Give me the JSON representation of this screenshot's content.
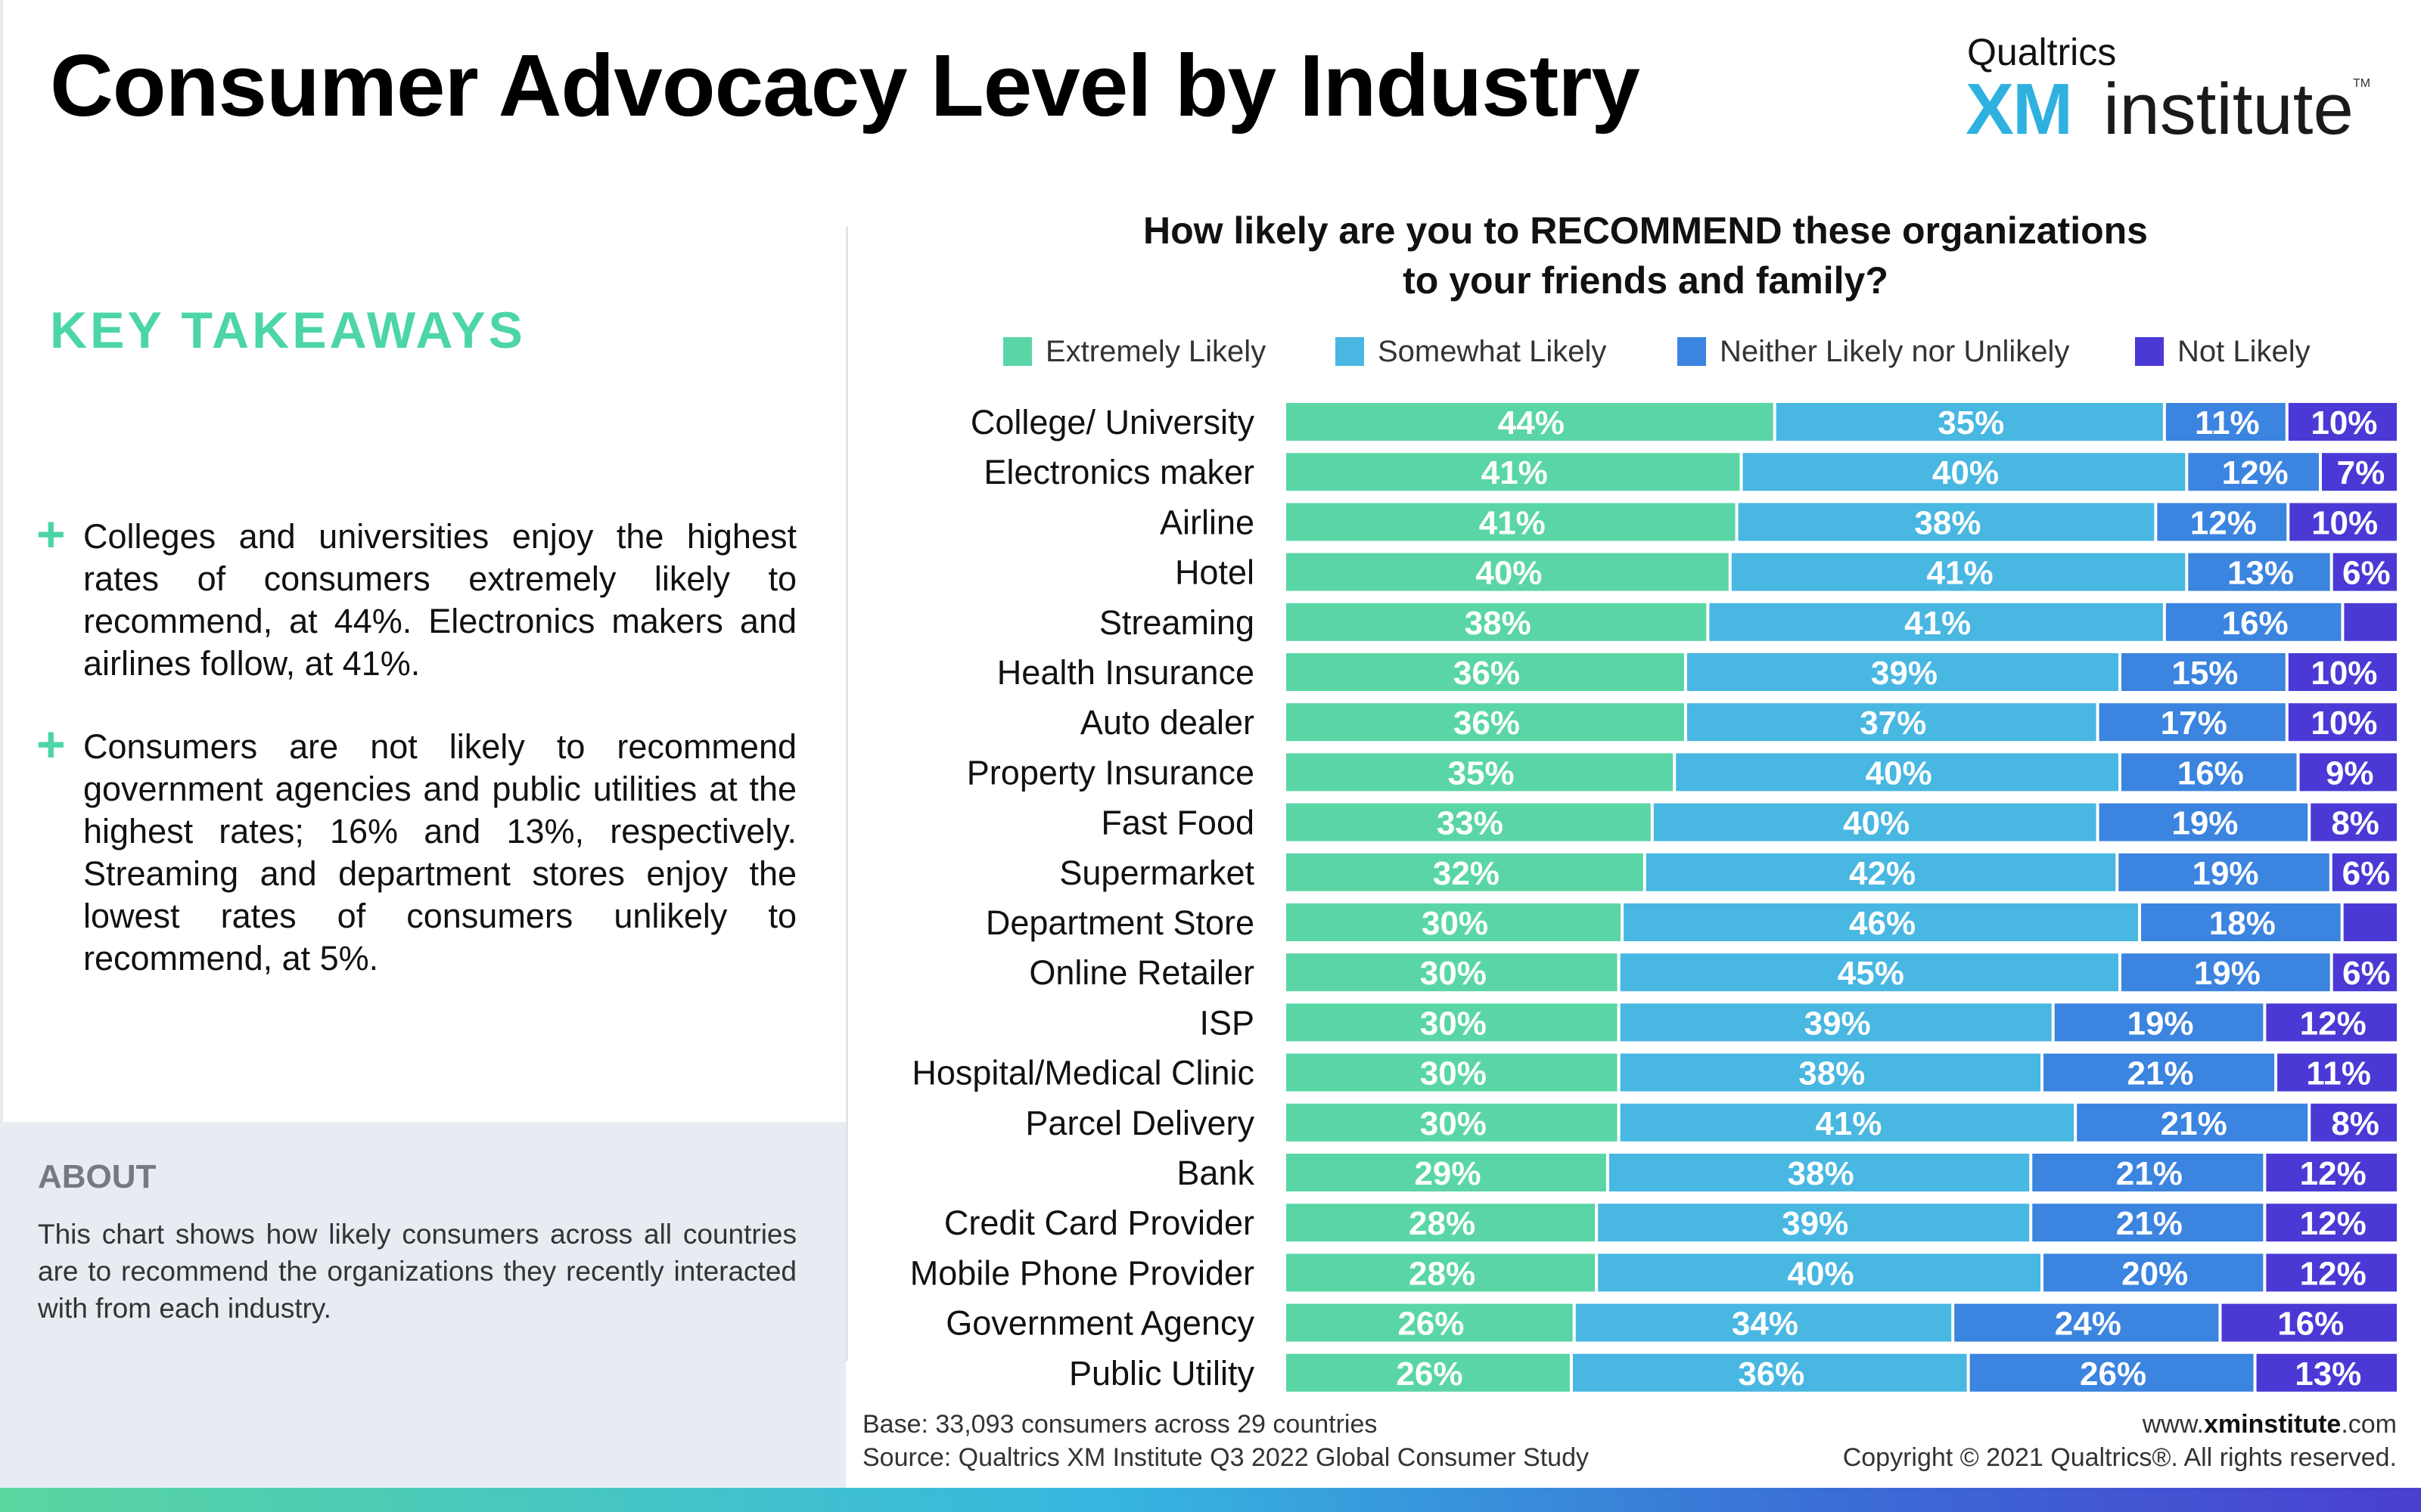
{
  "header": {
    "title": "Consumer Advocacy Level by Industry",
    "logo_brand": "Qualtrics",
    "logo_xm": "XM",
    "logo_institute": "institute",
    "logo_tm": "TM"
  },
  "takeaways": {
    "heading": "KEY TAKEAWAYS",
    "bullet_symbol": "+",
    "items": [
      "Colleges and universities enjoy the highest rates of consumers extremely likely to recommend, at 44%. Electronics makers and airlines follow, at 41%.",
      "Consumers are not likely to recommend government agencies and public utilities at the highest rates; 16% and 13%, respectively. Streaming and department stores enjoy the lowest rates of consumers unlikely to recommend, at 5%."
    ]
  },
  "about": {
    "heading": "ABOUT",
    "text": "This chart shows how likely consumers across all countries are to recommend the organizations they recently interacted with from each industry."
  },
  "footer": {
    "base": "Base: 33,093 consumers across 29 countries",
    "source": "Source: Qualtrics XM Institute Q3 2022 Global Consumer Study",
    "site_prefix": "www.",
    "site_bold": "xminstitute",
    "site_suffix": ".com",
    "copyright": "Copyright © 2021 Qualtrics®. All rights reserved."
  },
  "chart_data": {
    "type": "bar",
    "orientation": "horizontal",
    "stacked": true,
    "title": "How likely are you to RECOMMEND these organizations to your friends and family?",
    "title_lines": [
      "How likely are you to RECOMMEND these organizations",
      "to your friends and family?"
    ],
    "legend_position": "top",
    "grid": false,
    "xlim": [
      0,
      100
    ],
    "categories": [
      "College/ University",
      "Electronics maker",
      "Airline",
      "Hotel",
      "Streaming",
      "Health Insurance",
      "Auto dealer",
      "Property Insurance",
      "Fast Food",
      "Supermarket",
      "Department Store",
      "Online Retailer",
      "ISP",
      "Hospital/Medical Clinic",
      "Parcel Delivery",
      "Bank",
      "Credit Card Provider",
      "Mobile Phone Provider",
      "Government Agency",
      "Public Utility"
    ],
    "series": [
      {
        "name": "Extremely Likely",
        "color": "#5ad6a6",
        "values": [
          44,
          41,
          41,
          40,
          38,
          36,
          36,
          35,
          33,
          32,
          30,
          30,
          30,
          30,
          30,
          29,
          28,
          28,
          26,
          26
        ]
      },
      {
        "name": "Somewhat Likely",
        "color": "#48b7e2",
        "values": [
          35,
          40,
          38,
          41,
          41,
          39,
          37,
          40,
          40,
          42,
          46,
          45,
          39,
          38,
          41,
          38,
          39,
          40,
          34,
          36
        ]
      },
      {
        "name": "Neither Likely nor Unlikely",
        "color": "#3b84e0",
        "values": [
          11,
          12,
          12,
          13,
          16,
          15,
          17,
          16,
          19,
          19,
          18,
          19,
          19,
          21,
          21,
          21,
          21,
          20,
          24,
          26
        ]
      },
      {
        "name": "Not Likely",
        "color": "#4b39d6",
        "values": [
          10,
          7,
          10,
          6,
          5,
          10,
          10,
          9,
          8,
          6,
          5,
          6,
          12,
          11,
          8,
          12,
          12,
          12,
          16,
          13
        ]
      }
    ],
    "value_labels": [
      [
        "44%",
        "35%",
        "11%",
        "10%"
      ],
      [
        "41%",
        "40%",
        "12%",
        "7%"
      ],
      [
        "41%",
        "38%",
        "12%",
        "10%"
      ],
      [
        "40%",
        "41%",
        "13%",
        "6%"
      ],
      [
        "38%",
        "41%",
        "16%",
        ""
      ],
      [
        "36%",
        "39%",
        "15%",
        "10%"
      ],
      [
        "36%",
        "37%",
        "17%",
        "10%"
      ],
      [
        "35%",
        "40%",
        "16%",
        "9%"
      ],
      [
        "33%",
        "40%",
        "19%",
        "8%"
      ],
      [
        "32%",
        "42%",
        "19%",
        "6%"
      ],
      [
        "30%",
        "46%",
        "18%",
        ""
      ],
      [
        "30%",
        "45%",
        "19%",
        "6%"
      ],
      [
        "30%",
        "39%",
        "19%",
        "12%"
      ],
      [
        "30%",
        "38%",
        "21%",
        "11%"
      ],
      [
        "30%",
        "41%",
        "21%",
        "8%"
      ],
      [
        "29%",
        "38%",
        "21%",
        "12%"
      ],
      [
        "28%",
        "39%",
        "21%",
        "12%"
      ],
      [
        "28%",
        "40%",
        "20%",
        "12%"
      ],
      [
        "26%",
        "34%",
        "24%",
        "16%"
      ],
      [
        "26%",
        "36%",
        "26%",
        "13%"
      ]
    ]
  }
}
